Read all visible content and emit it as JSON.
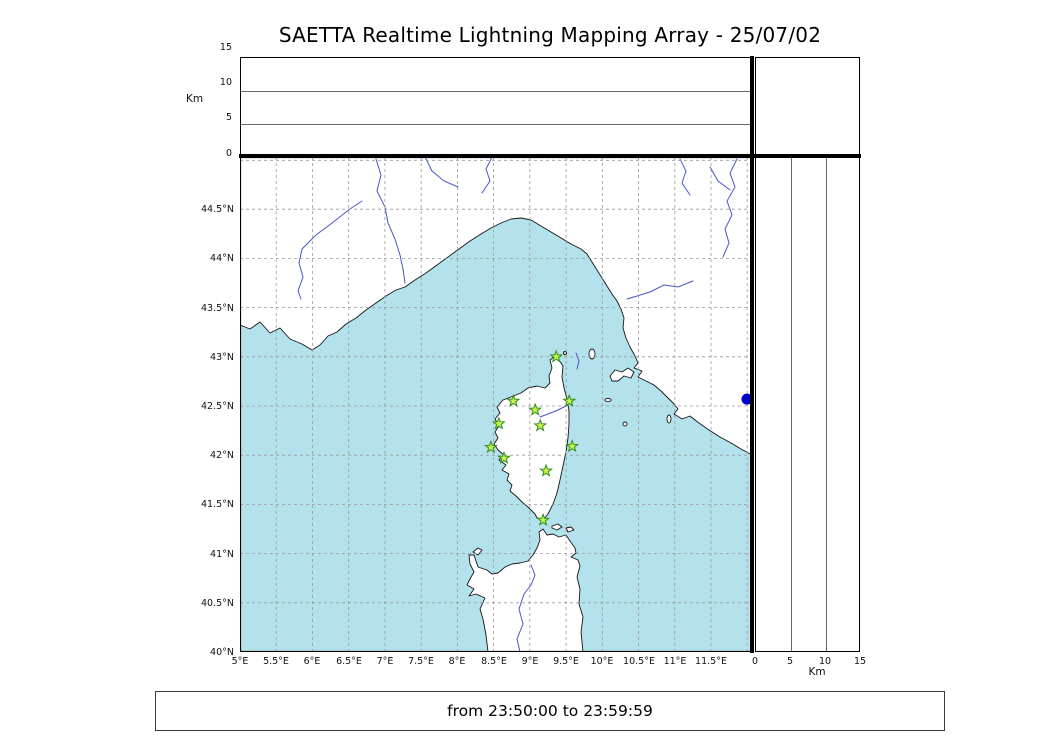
{
  "title": "SAETTA Realtime Lightning Mapping Array - 25/07/02",
  "footer": {
    "text": "from 23:50:00 to 23:59:59"
  },
  "axes": {
    "km_unit_left": "Km",
    "km_unit_bottom": "Km",
    "alt_labels_topdown": [
      "15",
      "10",
      "5",
      "0"
    ],
    "km_labels_bottom": [
      "0",
      "5",
      "10",
      "15"
    ],
    "lon_labels": [
      "5°E",
      "5.5°E",
      "6°E",
      "6.5°E",
      "7°E",
      "7.5°E",
      "8°E",
      "8.5°E",
      "9°E",
      "9.5°E",
      "10°E",
      "10.5°E",
      "11°E",
      "11.5°E"
    ],
    "lat_labels": [
      "44.5°N",
      "44°N",
      "43.5°N",
      "43°N",
      "42.5°N",
      "42°N",
      "41.5°N",
      "41°N",
      "40.5°N",
      "40°N"
    ]
  },
  "colors": {
    "sea": "#b4e2ec",
    "land": "#ffffff",
    "river": "#4a55cc",
    "grid": "#999999",
    "station_fill": "#c9f24f",
    "station_stroke": "#2f8f1f",
    "detection": "#0000cc"
  },
  "chart_data": {
    "type": "scatter",
    "title": "SAETTA Realtime Lightning Mapping Array - 25/07/02",
    "time_window": {
      "from": "23:50:00",
      "to": "23:59:59"
    },
    "map_panel": {
      "xlim_lon_deg_e": [
        5.0,
        12.06
      ],
      "ylim_lat_deg_n": [
        40.0,
        45.03
      ],
      "lon_tick_values": [
        5,
        5.5,
        6,
        6.5,
        7,
        7.5,
        8,
        8.5,
        9,
        9.5,
        10,
        10.5,
        11,
        11.5
      ],
      "lat_tick_values": [
        44.5,
        44,
        43.5,
        43,
        42.5,
        42,
        41.5,
        41,
        40.5,
        40
      ],
      "grid": true,
      "stations_lma": [
        {
          "lon": 9.36,
          "lat": 43.0
        },
        {
          "lon": 8.77,
          "lat": 42.55
        },
        {
          "lon": 9.07,
          "lat": 42.46
        },
        {
          "lon": 9.54,
          "lat": 42.55
        },
        {
          "lon": 9.14,
          "lat": 42.3
        },
        {
          "lon": 8.57,
          "lat": 42.32
        },
        {
          "lon": 8.46,
          "lat": 42.08
        },
        {
          "lon": 9.58,
          "lat": 42.09
        },
        {
          "lon": 8.64,
          "lat": 41.97
        },
        {
          "lon": 9.22,
          "lat": 41.84
        },
        {
          "lon": 9.18,
          "lat": 41.34
        }
      ],
      "detections": [
        {
          "lon": 11.99,
          "lat": 42.57
        }
      ]
    },
    "altitude_top_panel": {
      "axis": "altitude(km) vs longitude",
      "ylim_km": [
        0,
        15
      ],
      "tick_values_km": [
        0,
        5,
        10,
        15
      ],
      "points": []
    },
    "altitude_right_panel": {
      "axis": "altitude(km) vs latitude",
      "xlim_km": [
        0,
        15
      ],
      "tick_values_km": [
        0,
        5,
        10,
        15
      ],
      "points": []
    }
  }
}
